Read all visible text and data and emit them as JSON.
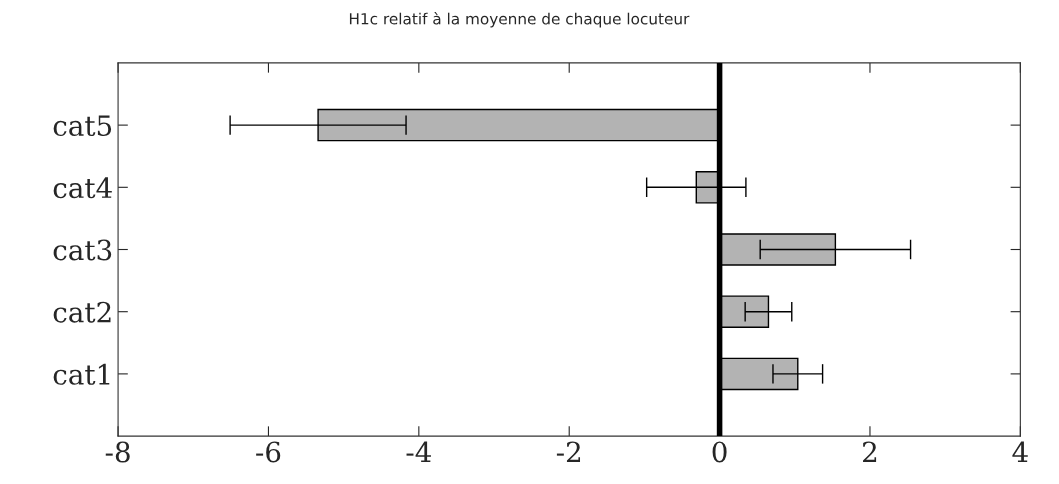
{
  "chart_data": {
    "type": "bar",
    "orientation": "horizontal",
    "title": "H1c relatif à la moyenne de chaque locuteur",
    "categories": [
      "cat5",
      "cat4",
      "cat3",
      "cat2",
      "cat1"
    ],
    "values": [
      -5.34,
      -0.31,
      1.54,
      0.65,
      1.04
    ],
    "errors": [
      1.17,
      0.66,
      1.0,
      0.31,
      0.33
    ],
    "color": "#b3b3b3",
    "xlim": [
      -8,
      4
    ],
    "xticks": [
      -8,
      -6,
      -4,
      -2,
      0,
      2,
      4
    ],
    "ref_lines": [
      {
        "axis": "x",
        "value": 0,
        "color": "#000000"
      }
    ],
    "grid": false,
    "legend": false
  }
}
